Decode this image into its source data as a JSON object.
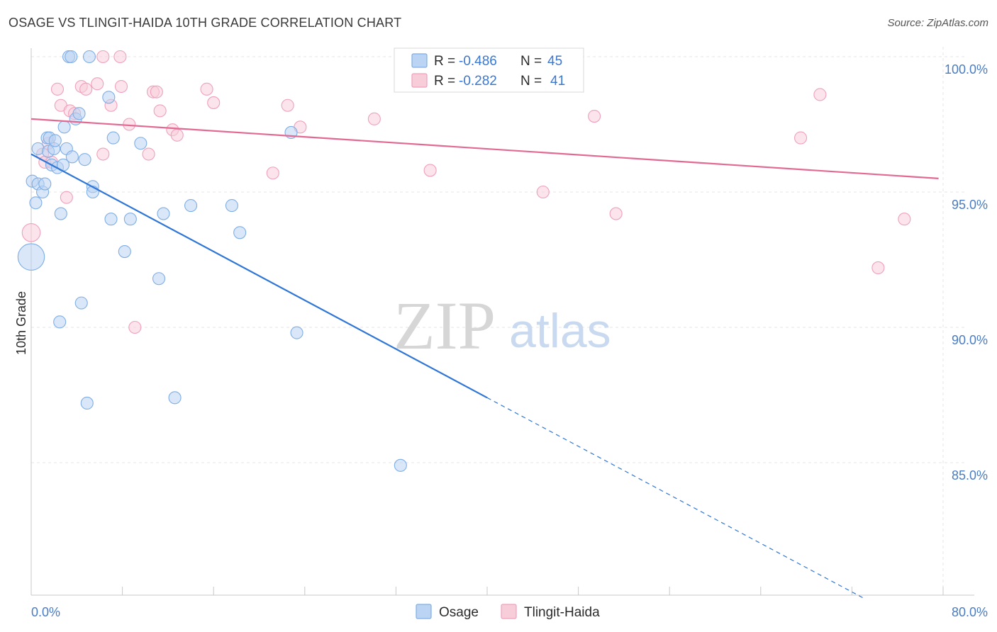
{
  "header": {
    "title": "OSAGE VS TLINGIT-HAIDA 10TH GRADE CORRELATION CHART",
    "source": "Source: ZipAtlas.com"
  },
  "watermark": {
    "zip": "ZIP",
    "atlas": "atlas"
  },
  "legend_top": {
    "rows": [
      {
        "r_label": "R =",
        "r_value": "-0.486",
        "n_label": "N =",
        "n_value": "45",
        "color": "#7eaee6"
      },
      {
        "r_label": "R =",
        "r_value": "-0.282",
        "n_label": "N =",
        "n_value": "41",
        "color": "#f0a0bb"
      }
    ]
  },
  "chart_data": {
    "type": "scatter",
    "title": "OSAGE VS TLINGIT-HAIDA 10TH GRADE CORRELATION CHART",
    "ylabel": "10th Grade",
    "xlabel": "",
    "xlim": [
      0,
      80
    ],
    "ylim": [
      80.5,
      100.7
    ],
    "x_tick_labels": [
      {
        "value": 0,
        "label": "0.0%"
      },
      {
        "value": 80,
        "label": "80.0%"
      }
    ],
    "y_tick_labels": [
      {
        "value": 100,
        "label": "100.0%"
      },
      {
        "value": 95,
        "label": "95.0%"
      },
      {
        "value": 90,
        "label": "90.0%"
      },
      {
        "value": 85,
        "label": "85.0%"
      }
    ],
    "grid": true,
    "legend_position": "bottom-center",
    "series": [
      {
        "name": "Osage",
        "color": "#7eaee6",
        "fill": "#bcd4f3",
        "r": -0.486,
        "n": 45,
        "trend": {
          "x0": 0,
          "y0": 96.4,
          "x1": 40,
          "y1": 87.4,
          "dash_x1": 73,
          "dash_y1": 80.0
        },
        "points": [
          [
            0,
            92.6,
            2.2
          ],
          [
            0.1,
            95.4,
            1
          ],
          [
            0.4,
            94.6,
            1
          ],
          [
            0.6,
            96.6,
            1
          ],
          [
            0.6,
            95.3,
            1
          ],
          [
            1.0,
            95.0,
            1
          ],
          [
            1.2,
            95.3,
            1
          ],
          [
            1.4,
            97.0,
            1
          ],
          [
            1.6,
            97.0,
            1
          ],
          [
            1.5,
            96.5,
            1
          ],
          [
            1.8,
            96.0,
            1
          ],
          [
            2.0,
            96.6,
            1
          ],
          [
            2.1,
            96.9,
            1
          ],
          [
            2.3,
            95.9,
            1
          ],
          [
            2.6,
            94.2,
            1
          ],
          [
            2.8,
            96.0,
            1
          ],
          [
            2.9,
            97.4,
            1
          ],
          [
            3.1,
            96.6,
            1
          ],
          [
            3.3,
            100.0,
            1
          ],
          [
            3.5,
            100.0,
            1
          ],
          [
            3.6,
            96.3,
            1
          ],
          [
            3.9,
            97.7,
            1
          ],
          [
            4.2,
            97.9,
            1
          ],
          [
            4.4,
            90.9,
            1
          ],
          [
            4.7,
            96.2,
            1
          ],
          [
            4.9,
            87.2,
            1
          ],
          [
            5.1,
            100.0,
            1
          ],
          [
            5.4,
            95.2,
            1
          ],
          [
            5.4,
            95.0,
            1
          ],
          [
            2.5,
            90.2,
            1
          ],
          [
            6.8,
            98.5,
            1
          ],
          [
            7.0,
            94.0,
            1
          ],
          [
            7.2,
            97.0,
            1
          ],
          [
            8.2,
            92.8,
            1
          ],
          [
            8.7,
            94.0,
            1
          ],
          [
            9.6,
            96.8,
            1
          ],
          [
            11.2,
            91.8,
            1
          ],
          [
            11.6,
            94.2,
            1
          ],
          [
            12.6,
            87.4,
            1
          ],
          [
            14.0,
            94.5,
            1
          ],
          [
            17.6,
            94.5,
            1
          ],
          [
            18.3,
            93.5,
            1
          ],
          [
            22.8,
            97.2,
            1
          ],
          [
            23.3,
            89.8,
            1
          ],
          [
            32.4,
            84.9,
            1
          ]
        ]
      },
      {
        "name": "Tlingit-Haida",
        "color": "#f0a0bb",
        "fill": "#f8cdda",
        "r": -0.282,
        "n": 41,
        "trend": {
          "x0": 0,
          "y0": 97.7,
          "x1": 79.6,
          "y1": 95.5
        },
        "points": [
          [
            0,
            93.5,
            1.5
          ],
          [
            1.0,
            96.4,
            1
          ],
          [
            1.2,
            96.1,
            1
          ],
          [
            1.5,
            96.8,
            1
          ],
          [
            1.8,
            96.1,
            1
          ],
          [
            2.3,
            98.8,
            1
          ],
          [
            2.6,
            98.2,
            1
          ],
          [
            3.1,
            94.8,
            1
          ],
          [
            3.4,
            98.0,
            1
          ],
          [
            3.8,
            97.9,
            1
          ],
          [
            4.4,
            98.9,
            1
          ],
          [
            4.8,
            98.8,
            1
          ],
          [
            5.8,
            99.0,
            1
          ],
          [
            6.3,
            100.0,
            1
          ],
          [
            6.3,
            96.4,
            1
          ],
          [
            7.0,
            98.2,
            1
          ],
          [
            7.8,
            100.0,
            1
          ],
          [
            7.9,
            98.9,
            1
          ],
          [
            8.6,
            97.5,
            1
          ],
          [
            9.1,
            90.0,
            1
          ],
          [
            10.3,
            96.4,
            1
          ],
          [
            10.7,
            98.7,
            1
          ],
          [
            11.0,
            98.7,
            1
          ],
          [
            11.3,
            98.0,
            1
          ],
          [
            12.4,
            97.3,
            1
          ],
          [
            12.8,
            97.1,
            1
          ],
          [
            15.4,
            98.8,
            1
          ],
          [
            16.0,
            98.3,
            1
          ],
          [
            21.2,
            95.7,
            1
          ],
          [
            22.5,
            98.2,
            1
          ],
          [
            23.6,
            97.4,
            1
          ],
          [
            30.1,
            97.7,
            1
          ],
          [
            35.0,
            95.8,
            1
          ],
          [
            36.5,
            100.0,
            1
          ],
          [
            44.9,
            95.0,
            1
          ],
          [
            49.4,
            97.8,
            1
          ],
          [
            51.3,
            94.2,
            1
          ],
          [
            67.5,
            97.0,
            1
          ],
          [
            69.2,
            98.6,
            1
          ],
          [
            74.3,
            92.2,
            1
          ],
          [
            76.6,
            94.0,
            1
          ]
        ]
      }
    ]
  },
  "legend_bottom": {
    "items": [
      {
        "label": "Osage",
        "color": "#7eaee6"
      },
      {
        "label": "Tlingit-Haida",
        "color": "#f0a0bb"
      }
    ]
  }
}
